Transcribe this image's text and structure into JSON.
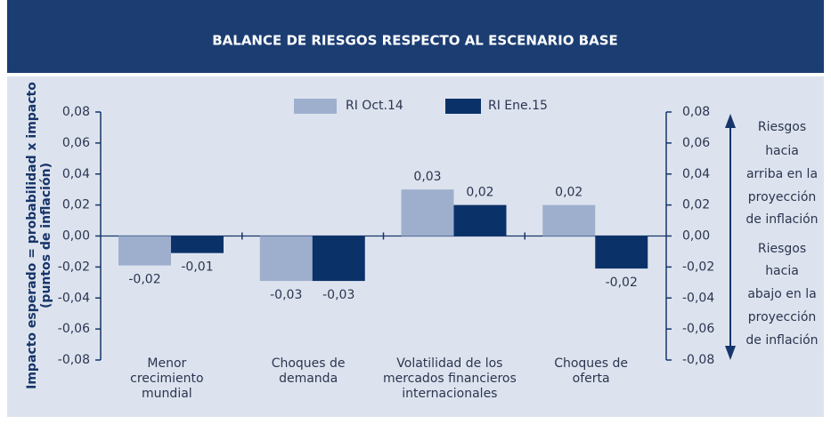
{
  "chart_data": {
    "type": "bar",
    "title": "BALANCE DE RIESGOS RESPECTO AL ESCENARIO BASE",
    "y_label": [
      "Impacto esperado = probabilidad x impacto",
      "(puntos de inflación)"
    ],
    "categories": [
      [
        "Menor",
        "crecimiento",
        "mundial"
      ],
      [
        "Choques de",
        "demanda"
      ],
      [
        "Volatilidad de los",
        "mercados financieros",
        "internacionales"
      ],
      [
        "Choques de",
        "oferta"
      ]
    ],
    "series": [
      {
        "name": "RI Oct.14",
        "color": "#9eafce",
        "values": [
          -0.019,
          -0.029,
          0.03,
          0.02
        ],
        "value_labels": [
          "-0,02",
          "-0,03",
          "0,03",
          "0,02"
        ]
      },
      {
        "name": "RI Ene.15",
        "color": "#0b3268",
        "values": [
          -0.011,
          -0.029,
          0.02,
          -0.021
        ],
        "value_labels": [
          "-0,01",
          "-0,03",
          "0,02",
          "-0,02"
        ]
      }
    ],
    "ylim": [
      -0.08,
      0.08
    ],
    "yticks": [
      {
        "value": 0.08,
        "label": "0,08"
      },
      {
        "value": 0.06,
        "label": "0,06"
      },
      {
        "value": 0.04,
        "label": "0,04"
      },
      {
        "value": 0.02,
        "label": "0,02"
      },
      {
        "value": 0,
        "label": "0,00"
      },
      {
        "value": -0.02,
        "label": "-0,02"
      },
      {
        "value": -0.04,
        "label": "-0,04"
      },
      {
        "value": -0.06,
        "label": "-0,06"
      },
      {
        "value": -0.08,
        "label": "-0,08"
      }
    ],
    "y2lim": [
      -0.08,
      0.08
    ],
    "y2ticks": [
      {
        "value": 0.08,
        "label": "0,08"
      },
      {
        "value": 0.06,
        "label": "0,06"
      },
      {
        "value": 0.04,
        "label": "0,04"
      },
      {
        "value": 0.02,
        "label": "0,02"
      },
      {
        "value": 0,
        "label": "0,00"
      },
      {
        "value": -0.02,
        "label": "-0,02"
      },
      {
        "value": -0.04,
        "label": "-0,04"
      },
      {
        "value": -0.06,
        "label": "-0,06"
      },
      {
        "value": -0.08,
        "label": "-0,08"
      }
    ],
    "annotations": [
      [
        "Riesgos",
        "hacia",
        "arriba en la",
        "proyección",
        "de inflación"
      ],
      [
        "Riesgos",
        "hacia",
        "abajo en la",
        "proyección",
        "de inflación"
      ]
    ]
  }
}
